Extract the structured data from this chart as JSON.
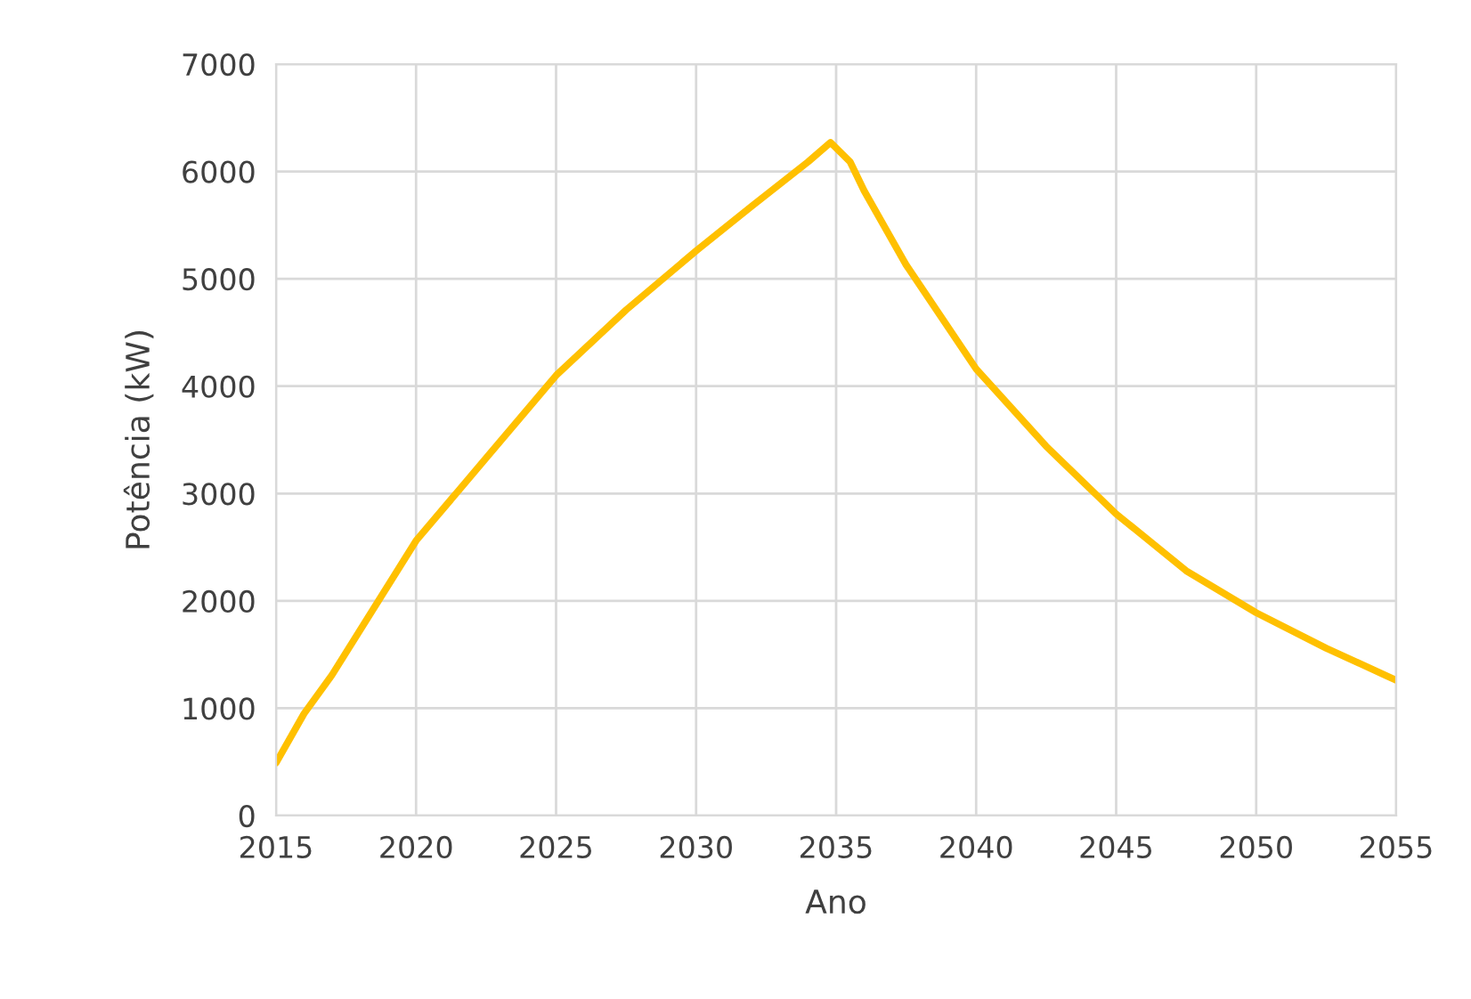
{
  "chart_data": {
    "type": "line",
    "xlabel": "Ano",
    "ylabel": "Potência (kW)",
    "x": [
      2015,
      2016,
      2017,
      2020,
      2022.5,
      2025,
      2027.5,
      2030,
      2032,
      2034,
      2034.8,
      2035.5,
      2036,
      2037.5,
      2040,
      2042.5,
      2045,
      2047.5,
      2050,
      2052.5,
      2055
    ],
    "series": [
      {
        "color": "#ffc000",
        "values": [
          490,
          950,
          1310,
          2560,
          3330,
          4100,
          4710,
          5260,
          5680,
          6090,
          6270,
          6090,
          5820,
          5130,
          4160,
          3440,
          2810,
          2280,
          1890,
          1560,
          1260
        ]
      }
    ],
    "xlim": [
      2015,
      2055
    ],
    "xticks": [
      2015,
      2020,
      2025,
      2030,
      2035,
      2040,
      2045,
      2050,
      2055
    ],
    "ylim": [
      0,
      7000
    ],
    "yticks": [
      0,
      1000,
      2000,
      3000,
      4000,
      5000,
      6000,
      7000
    ],
    "grid": true,
    "marker": "none",
    "line_style": "solid"
  }
}
